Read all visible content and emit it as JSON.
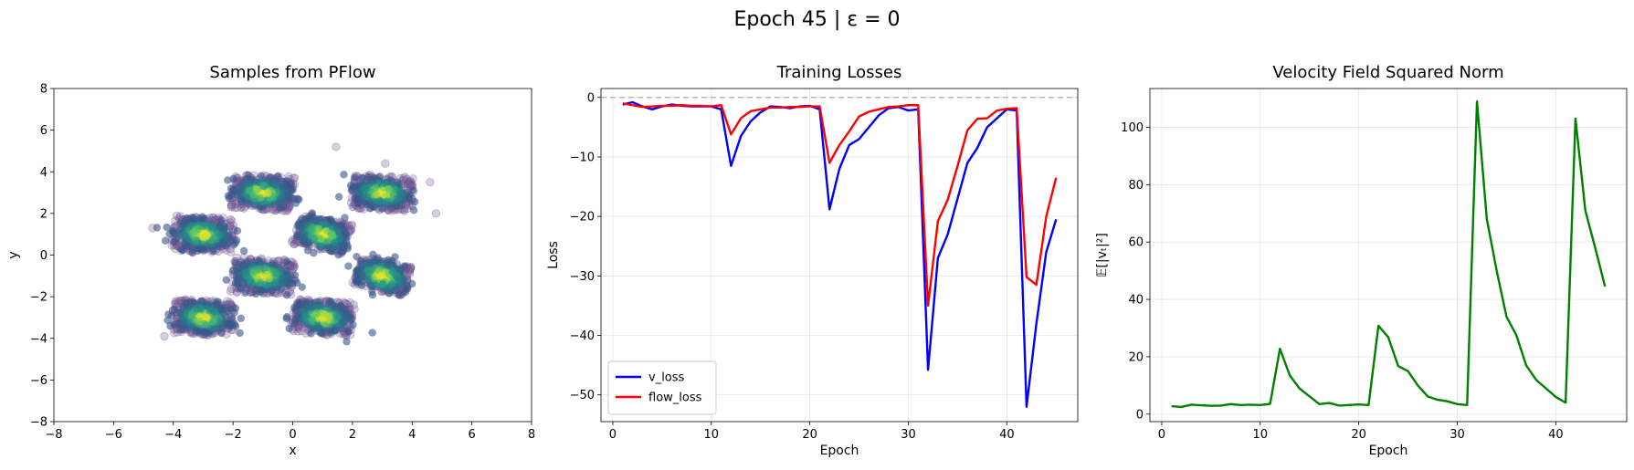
{
  "suptitle": "Epoch 45 | ε = 0",
  "chart_data": [
    {
      "type": "scatter",
      "title": "Samples from PFlow",
      "xlabel": "x",
      "ylabel": "y",
      "xlim": [
        -8,
        8
      ],
      "ylim": [
        -8,
        8
      ],
      "xticks": [
        -8,
        -6,
        -4,
        -2,
        0,
        2,
        4,
        6,
        8
      ],
      "yticks": [
        -8,
        -6,
        -4,
        -2,
        0,
        2,
        4,
        6,
        8
      ],
      "grid": false,
      "colormap": "viridis",
      "point_color": "#7a5d9a",
      "clusters": [
        {
          "x": -3.0,
          "y": 1.0,
          "angle_deg": -10
        },
        {
          "x": -1.0,
          "y": 3.0,
          "angle_deg": -10
        },
        {
          "x": 3.0,
          "y": 3.0,
          "angle_deg": -10
        },
        {
          "x": -1.0,
          "y": -1.0,
          "angle_deg": -10
        },
        {
          "x": 1.0,
          "y": 1.0,
          "angle_deg": -35
        },
        {
          "x": 3.0,
          "y": -1.0,
          "angle_deg": -35
        },
        {
          "x": -3.0,
          "y": -3.0,
          "angle_deg": -10
        },
        {
          "x": 1.0,
          "y": -3.0,
          "angle_deg": -15
        }
      ],
      "outliers": [
        [
          1.45,
          5.2
        ],
        [
          3.1,
          4.4
        ],
        [
          -4.7,
          1.3
        ],
        [
          4.8,
          2.0
        ],
        [
          -4.3,
          -3.9
        ],
        [
          4.6,
          3.5
        ]
      ]
    },
    {
      "type": "line",
      "title": "Training Losses",
      "xlabel": "Epoch",
      "ylabel": "Loss",
      "xlim": [
        -1.2,
        47.2
      ],
      "ylim": [
        -54.5,
        1.5
      ],
      "xticks": [
        0,
        10,
        20,
        30,
        40
      ],
      "yticks": [
        0,
        -10,
        -20,
        -30,
        -40,
        -50
      ],
      "grid": true,
      "reference_line": 0,
      "legend_loc": "lower left",
      "x": [
        1,
        2,
        3,
        4,
        5,
        6,
        7,
        8,
        9,
        10,
        11,
        12,
        13,
        14,
        15,
        16,
        17,
        18,
        19,
        20,
        21,
        22,
        23,
        24,
        25,
        26,
        27,
        28,
        29,
        30,
        31,
        32,
        33,
        34,
        35,
        36,
        37,
        38,
        39,
        40,
        41,
        42,
        43,
        44,
        45
      ],
      "series": [
        {
          "name": "v_loss",
          "color": "#0000ff",
          "values": [
            -1.2,
            -0.8,
            -1.5,
            -2.0,
            -1.5,
            -1.2,
            -1.4,
            -1.5,
            -1.5,
            -1.5,
            -2.0,
            -11.5,
            -6.5,
            -4.0,
            -2.5,
            -1.5,
            -1.6,
            -1.8,
            -1.5,
            -1.4,
            -2.0,
            -18.8,
            -12.0,
            -8.0,
            -7.0,
            -5.0,
            -3.0,
            -1.8,
            -1.6,
            -2.2,
            -2.0,
            -45.8,
            -27.0,
            -23.0,
            -17.0,
            -11.0,
            -8.5,
            -5.0,
            -3.5,
            -2.0,
            -2.2,
            -52.0,
            -38.0,
            -26.0,
            -20.5
          ]
        },
        {
          "name": "flow_loss",
          "color": "#ff0000",
          "values": [
            -1.0,
            -1.3,
            -1.6,
            -1.5,
            -1.4,
            -1.4,
            -1.3,
            -1.4,
            -1.4,
            -1.5,
            -1.3,
            -6.2,
            -3.5,
            -2.3,
            -2.0,
            -1.7,
            -1.7,
            -1.6,
            -1.6,
            -1.5,
            -1.5,
            -11.0,
            -8.0,
            -5.7,
            -3.2,
            -2.4,
            -2.0,
            -1.6,
            -1.5,
            -1.3,
            -1.3,
            -35.0,
            -20.8,
            -17.2,
            -11.5,
            -5.5,
            -3.6,
            -3.5,
            -2.2,
            -1.9,
            -1.8,
            -30.2,
            -31.5,
            -20.0,
            -13.5
          ]
        }
      ]
    },
    {
      "type": "line",
      "title": "Velocity Field Squared Norm",
      "xlabel": "Epoch",
      "ylabel": "𝔼[|vₜ|²]",
      "xlim": [
        -1.2,
        47.2
      ],
      "ylim": [
        -2.6,
        113.5
      ],
      "xticks": [
        0,
        10,
        20,
        30,
        40
      ],
      "yticks": [
        0,
        20,
        40,
        60,
        80,
        100
      ],
      "grid": true,
      "x": [
        1,
        2,
        3,
        4,
        5,
        6,
        7,
        8,
        9,
        10,
        11,
        12,
        13,
        14,
        15,
        16,
        17,
        18,
        19,
        20,
        21,
        22,
        23,
        24,
        25,
        26,
        27,
        28,
        29,
        30,
        31,
        32,
        33,
        34,
        35,
        36,
        37,
        38,
        39,
        40,
        41,
        42,
        43,
        44,
        45
      ],
      "series": [
        {
          "name": "",
          "color": "#008000",
          "values": [
            2.8,
            2.5,
            3.3,
            3.1,
            2.9,
            3.0,
            3.5,
            3.2,
            3.3,
            3.2,
            3.6,
            22.8,
            13.5,
            8.9,
            6.2,
            3.5,
            3.9,
            3.0,
            3.2,
            3.4,
            3.2,
            30.8,
            26.8,
            16.8,
            15.0,
            10.0,
            6.2,
            5.0,
            4.5,
            3.5,
            3.2,
            109.0,
            68.0,
            50.0,
            34.0,
            27.5,
            17.0,
            12.0,
            9.0,
            6.0,
            4.0,
            103.0,
            71.0,
            58.0,
            44.5
          ]
        }
      ]
    }
  ]
}
